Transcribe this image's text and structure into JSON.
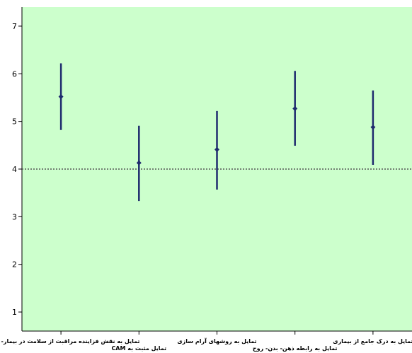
{
  "chart_data": {
    "type": "scatter",
    "subtype": "error-bar",
    "title": "",
    "xlabel": "",
    "ylabel": "",
    "ylim": [
      0.6,
      7.4
    ],
    "yticks": [
      1,
      2,
      3,
      4,
      5,
      6,
      7
    ],
    "reference_line": 4,
    "grid": false,
    "legend": "none",
    "categories": [
      "تمایل به نقش فزاینده مراقبت از سلامت در بیمار- پزشک",
      "تمایل مثبت به CAM",
      "تمایل به روشهای آرام سازی",
      "تمایل به رابطه ذهن- بدن- روح",
      "تمایل به درک جامع از بیماری"
    ],
    "series": [
      {
        "mean": [
          5.52,
          4.13,
          4.41,
          5.27,
          4.88
        ],
        "lower": [
          4.82,
          3.33,
          3.57,
          4.49,
          4.09
        ],
        "upper": [
          6.22,
          4.91,
          5.22,
          6.06,
          5.65
        ]
      }
    ],
    "colors": {
      "plot_background": "#ccffcc",
      "marker": "#1f2b6e",
      "reference_line": "#555555",
      "axis": "#000000"
    }
  }
}
